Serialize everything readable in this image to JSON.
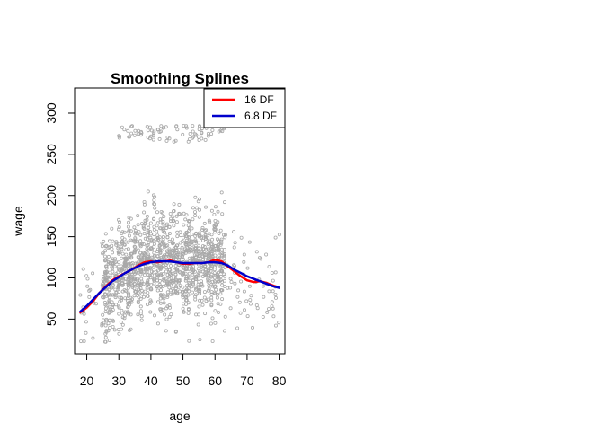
{
  "chart_data": {
    "type": "scatter",
    "title": "Smoothing Splines",
    "xlabel": "age",
    "ylabel": "wage",
    "xlim": [
      16.2,
      81.8
    ],
    "ylim": [
      7.9,
      330.5
    ],
    "x_ticks": [
      20,
      30,
      40,
      50,
      60,
      70,
      80
    ],
    "y_ticks": [
      50,
      100,
      150,
      200,
      250,
      300
    ],
    "grid": false,
    "legend_position": "top-right",
    "point_color": "#a9a9a9",
    "series": [
      {
        "name": "16 DF",
        "color": "#ff0000",
        "x": [
          18,
          20,
          22,
          24,
          26,
          28,
          30,
          32,
          34,
          36,
          38,
          40,
          42,
          44,
          46,
          48,
          50,
          52,
          54,
          56,
          58,
          60,
          62,
          64,
          66,
          68,
          70,
          72,
          74,
          76,
          78,
          80
        ],
        "y": [
          58,
          64,
          72,
          82,
          90,
          97,
          102,
          106,
          110,
          115,
          119,
          120,
          119,
          120,
          121,
          119,
          117,
          117,
          118,
          118,
          119,
          122,
          120,
          114,
          108,
          102,
          97,
          95,
          96,
          94,
          91,
          88
        ]
      },
      {
        "name": "6.8 DF",
        "color": "#0000cc",
        "x": [
          18,
          20,
          22,
          24,
          26,
          28,
          30,
          32,
          34,
          36,
          38,
          40,
          42,
          44,
          46,
          48,
          50,
          52,
          54,
          56,
          58,
          60,
          62,
          64,
          66,
          68,
          70,
          72,
          74,
          76,
          78,
          80
        ],
        "y": [
          59,
          66,
          74,
          82,
          89,
          96,
          101,
          106,
          110,
          114,
          117,
          119,
          120,
          120,
          120,
          119,
          118,
          118,
          118,
          118,
          119,
          119,
          118,
          115,
          110,
          106,
          102,
          99,
          96,
          93,
          90,
          88
        ]
      }
    ]
  }
}
